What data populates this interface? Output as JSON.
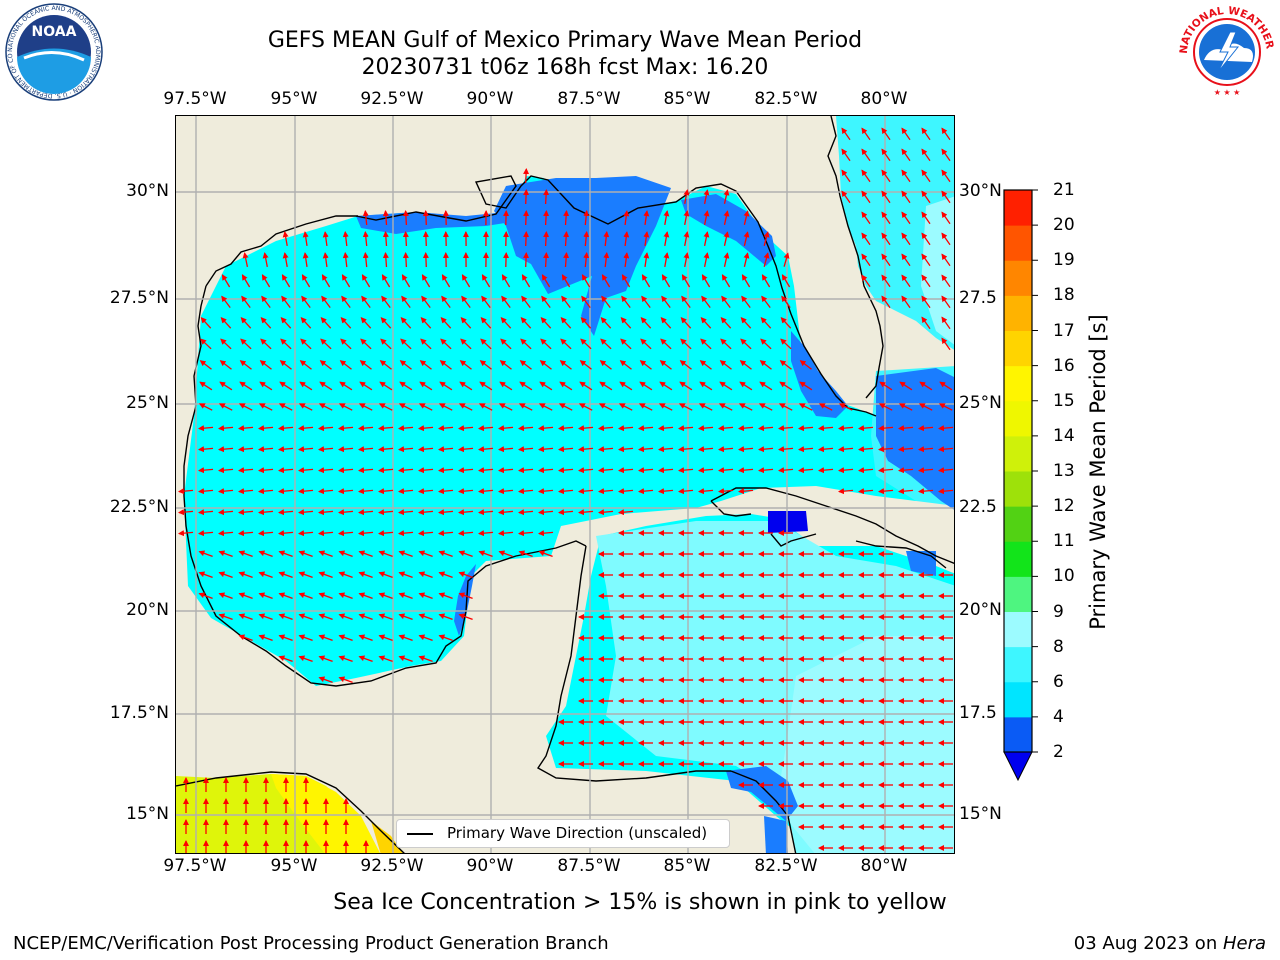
{
  "header": {
    "title_line1": "GEFS MEAN Gulf of Mexico Primary Wave Mean Period",
    "title_line2": "20230731 t06z 168h fcst   Max: 16.20"
  },
  "logos": {
    "noaa_text": "NOAA",
    "noaa_ring_text": "NATIONAL OCEANIC AND ATMOSPHERIC ADMINISTRATION · U.S. DEPARTMENT OF COMMERCE",
    "nws_ring_text": "NATIONAL WEATHER SERVICE"
  },
  "axes": {
    "lon_labels": [
      "97.5°W",
      "95°W",
      "92.5°W",
      "90°W",
      "87.5°W",
      "85°W",
      "82.5°W",
      "80°W"
    ],
    "lat_labels_left": [
      "30°N",
      "27.5°N",
      "25°N",
      "22.5°N",
      "20°N",
      "17.5°N",
      "15°N"
    ],
    "lat_labels_right": [
      "30°N",
      "27.5",
      "25°N",
      "22.5",
      "20°N",
      "17.5",
      "15°N"
    ]
  },
  "legend": {
    "label": "Primary Wave Direction (unscaled)"
  },
  "colorbar": {
    "title": "Primary Wave Mean Period [s]",
    "ticks": [
      "2",
      "4",
      "6",
      "8",
      "9",
      "10",
      "11",
      "12",
      "13",
      "14",
      "15",
      "16",
      "17",
      "18",
      "19",
      "20",
      "21"
    ],
    "colors": [
      "#0a5bf5",
      "#00e5ff",
      "#3ef6ff",
      "#9cfbff",
      "#4ef580",
      "#12e41a",
      "#52d214",
      "#9ee10a",
      "#cff10a",
      "#eff700",
      "#fff500",
      "#ffd400",
      "#ffb300",
      "#ff8600",
      "#ff5500",
      "#ff2000",
      "#ff0000"
    ],
    "extend_color": "#0000ee"
  },
  "footer": {
    "note": "Sea Ice Concentration > 15% is shown in pink to yellow",
    "credit_left": "NCEP/EMC/Verification Post Processing Product Generation Branch",
    "credit_right_prefix": "03 Aug 2023 on ",
    "credit_right_host": "Hera"
  },
  "colors": {
    "land": "#efecdc",
    "grid": "#b0b0b0",
    "arrow": "#ff0000",
    "cyan_dominant": "#00ffff",
    "blue_shelf": "#1a7dff"
  }
}
